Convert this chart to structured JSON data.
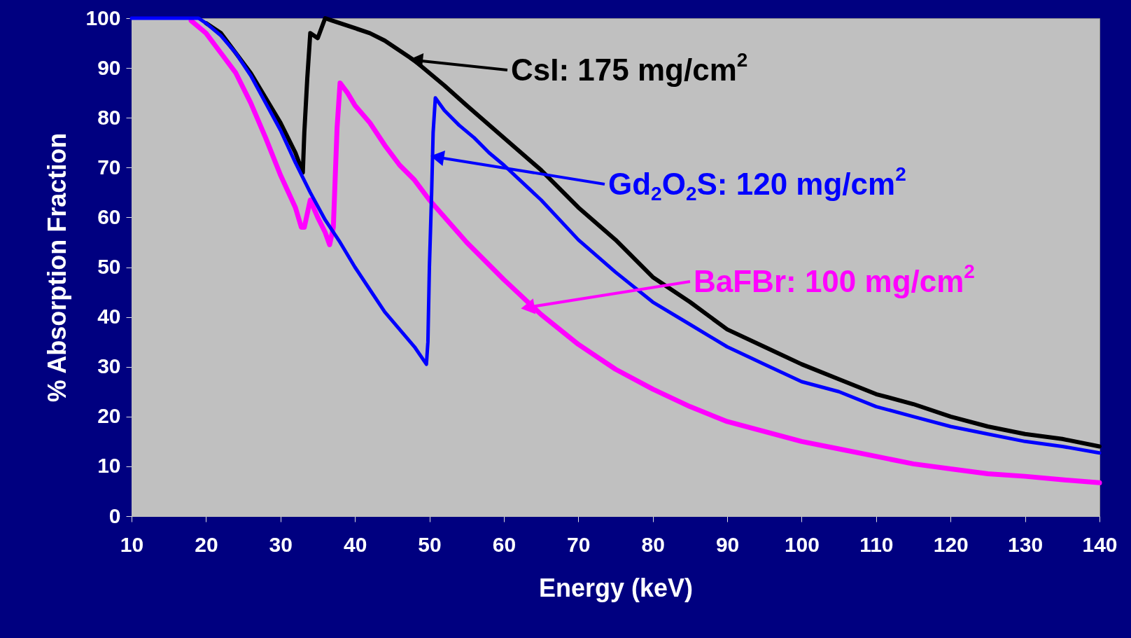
{
  "chart_data": {
    "type": "line",
    "xlabel": "Energy (keV)",
    "ylabel": "% Absorption Fraction",
    "xlim": [
      10,
      140
    ],
    "ylim": [
      0,
      100
    ],
    "xticks": [
      10,
      20,
      30,
      40,
      50,
      60,
      70,
      80,
      90,
      100,
      110,
      120,
      130,
      140
    ],
    "yticks": [
      0,
      10,
      20,
      30,
      40,
      50,
      60,
      70,
      80,
      90,
      100
    ],
    "grid": false,
    "line_style": "solid",
    "marker": "none",
    "series": [
      {
        "color": "#ff00ff",
        "x": [
          18,
          20,
          22,
          24,
          26,
          28,
          30,
          32,
          32.8,
          33.2,
          34,
          35,
          36,
          36.6,
          37.1,
          37.3,
          37.6,
          38,
          39,
          40,
          42,
          44,
          46,
          48,
          50,
          55,
          60,
          65,
          70,
          75,
          80,
          85,
          90,
          95,
          100,
          105,
          110,
          115,
          120,
          125,
          130,
          135,
          140
        ],
        "values": [
          99.5,
          97,
          93,
          89,
          83,
          76,
          68.5,
          62,
          58,
          58,
          63.5,
          60,
          57,
          54.5,
          58,
          66,
          78,
          87,
          85,
          82.5,
          79,
          74.5,
          70.5,
          67.5,
          63.5,
          55,
          47.5,
          40.5,
          34.5,
          29.5,
          25.5,
          22,
          19,
          17,
          15,
          13.5,
          12,
          10.5,
          9.5,
          8.5,
          8,
          7.3,
          6.7
        ]
      },
      {
        "color": "#000000",
        "x": [
          20,
          22,
          24,
          26,
          28,
          30,
          32,
          33,
          33.2,
          33.6,
          34,
          35,
          36,
          37,
          40,
          42,
          44,
          46,
          48,
          50,
          52,
          55,
          60,
          65,
          70,
          75,
          80,
          85,
          90,
          95,
          100,
          105,
          110,
          115,
          120,
          125,
          130,
          135,
          140
        ],
        "values": [
          99,
          97,
          93,
          89,
          84,
          79,
          73,
          69,
          77,
          88,
          97,
          96,
          100,
          99.5,
          98,
          97,
          95.5,
          93.5,
          91.5,
          89,
          86.5,
          82.5,
          76,
          69.5,
          62,
          55.5,
          48,
          43,
          37.5,
          34,
          30.5,
          27.5,
          24.5,
          22.5,
          20,
          18,
          16.5,
          15.5,
          14
        ]
      },
      {
        "color": "#0000ff",
        "x": [
          10,
          15,
          19,
          20,
          22,
          24,
          26,
          28,
          30,
          32,
          34,
          36,
          38,
          40,
          42,
          44,
          46,
          48,
          49.6,
          49.8,
          50,
          50.3,
          50.5,
          50.8,
          52,
          54,
          56,
          58,
          60,
          65,
          70,
          75,
          80,
          85,
          90,
          95,
          100,
          105,
          110,
          115,
          120,
          125,
          130,
          135,
          140
        ],
        "values": [
          100,
          100,
          100,
          99,
          96.5,
          93,
          88.5,
          83,
          77.5,
          71,
          65,
          59.5,
          55,
          50,
          45.5,
          41,
          37.5,
          34,
          30.5,
          35,
          50,
          65,
          77,
          84,
          81.5,
          78.5,
          76,
          73,
          70.5,
          63.5,
          55.5,
          49,
          43,
          38.5,
          34,
          30.5,
          27,
          25,
          22,
          20,
          18,
          16.5,
          15,
          14,
          12.7
        ]
      }
    ],
    "annotations": [
      {
        "text": "BaFBr: 100 mg/cm$^{2}$",
        "x": 63.5,
        "y": 42
      },
      {
        "text": "CsI: 175 mg/cm$^{2}$",
        "x": 48.5,
        "y": 91.5
      },
      "Gd$_{2}$O$_{2}$S: 120 mg/cm$^{2}$"
    ]
  }
}
